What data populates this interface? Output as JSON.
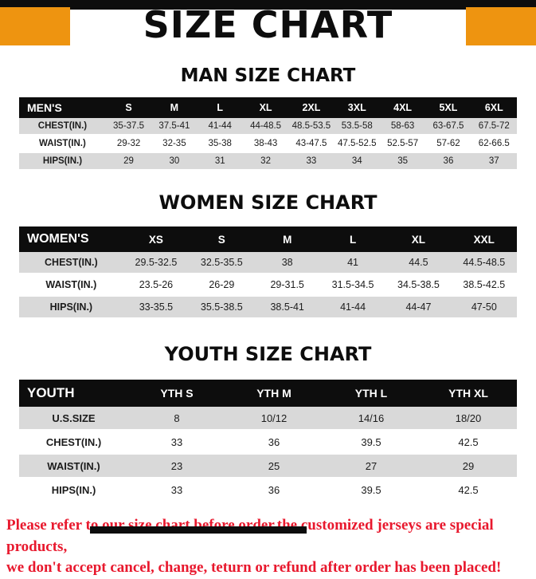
{
  "page": {
    "title": "SIZE CHART",
    "colors": {
      "accent_orange": "#ee9410",
      "ink_black": "#0d0d0d",
      "row_shade": "#d9d9d9",
      "footer_red": "#e8182d"
    }
  },
  "sections": [
    {
      "heading": "MAN SIZE CHART",
      "table": {
        "header_label": "MEN'S",
        "columns": [
          "S",
          "M",
          "L",
          "XL",
          "2XL",
          "3XL",
          "4XL",
          "5XL",
          "6XL"
        ],
        "rows": [
          {
            "label": "CHEST(IN.)",
            "values": [
              "35-37.5",
              "37.5-41",
              "41-44",
              "44-48.5",
              "48.5-53.5",
              "53.5-58",
              "58-63",
              "63-67.5",
              "67.5-72"
            ]
          },
          {
            "label": "WAIST(IN.)",
            "values": [
              "29-32",
              "32-35",
              "35-38",
              "38-43",
              "43-47.5",
              "47.5-52.5",
              "52.5-57",
              "57-62",
              "62-66.5"
            ]
          },
          {
            "label": "HIPS(IN.)",
            "values": [
              "29",
              "30",
              "31",
              "32",
              "33",
              "34",
              "35",
              "36",
              "37"
            ]
          }
        ]
      }
    },
    {
      "heading": "WOMEN SIZE CHART",
      "table": {
        "header_label": "WOMEN'S",
        "columns": [
          "XS",
          "S",
          "M",
          "L",
          "XL",
          "XXL"
        ],
        "rows": [
          {
            "label": "CHEST(IN.)",
            "values": [
              "29.5-32.5",
              "32.5-35.5",
              "38",
              "41",
              "44.5",
              "44.5-48.5"
            ]
          },
          {
            "label": "WAIST(IN.)",
            "values": [
              "23.5-26",
              "26-29",
              "29-31.5",
              "31.5-34.5",
              "34.5-38.5",
              "38.5-42.5"
            ]
          },
          {
            "label": "HIPS(IN.)",
            "values": [
              "33-35.5",
              "35.5-38.5",
              "38.5-41",
              "41-44",
              "44-47",
              "47-50"
            ]
          }
        ]
      }
    },
    {
      "heading": "YOUTH SIZE CHART",
      "table": {
        "header_label": "YOUTH",
        "columns": [
          "YTH S",
          "YTH M",
          "YTH L",
          "YTH XL"
        ],
        "rows": [
          {
            "label": "U.S.SIZE",
            "values": [
              "8",
              "10/12",
              "14/16",
              "18/20"
            ]
          },
          {
            "label": "CHEST(IN.)",
            "values": [
              "33",
              "36",
              "39.5",
              "42.5"
            ]
          },
          {
            "label": "WAIST(IN.)",
            "values": [
              "23",
              "25",
              "27",
              "29"
            ]
          },
          {
            "label": "HIPS(IN.)",
            "values": [
              "33",
              "36",
              "39.5",
              "42.5"
            ]
          }
        ]
      }
    }
  ],
  "footer": {
    "line1": "Please refer to our size chart before order,the customized jerseys are special products,",
    "line2": "we don't accept cancel, change, teturn or refund after order has been placed!"
  }
}
